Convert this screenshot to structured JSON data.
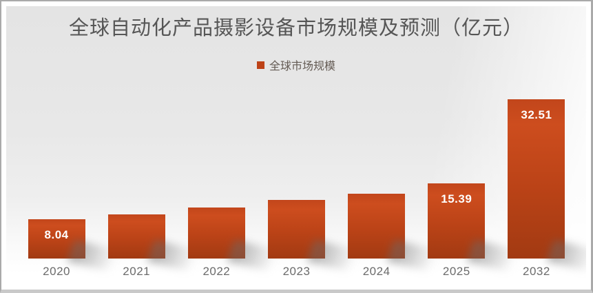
{
  "chart_data": {
    "type": "bar",
    "title": "全球自动化产品摄影设备市场规模及预测（亿元）",
    "unit": "亿元",
    "legend_label": "全球市场规模",
    "legend_position": "top-center",
    "grid": false,
    "y_axis_visible": false,
    "ylim": [
      0,
      34
    ],
    "categories": [
      "2020",
      "2021",
      "2022",
      "2023",
      "2024",
      "2025",
      "2032"
    ],
    "series": [
      {
        "name": "全球市场规模",
        "values": [
          8.04,
          9.05,
          10.45,
          12.0,
          13.3,
          15.39,
          32.51
        ],
        "value_labels": [
          "8.04",
          "",
          "",
          "",
          "",
          "15.39",
          "32.51"
        ],
        "estimated": [
          false,
          true,
          true,
          true,
          true,
          false,
          false
        ]
      }
    ]
  },
  "colors": {
    "bar_gradient_top": "#cd4d1e",
    "bar_gradient_bottom": "#a23a12",
    "legend_swatch": "#bd4217",
    "title_text": "#565656",
    "axis_label_text": "#6b6b6b",
    "value_label_text": "#ffffff",
    "background_top": "#e4e4e4",
    "background_bottom": "#ffffff"
  }
}
